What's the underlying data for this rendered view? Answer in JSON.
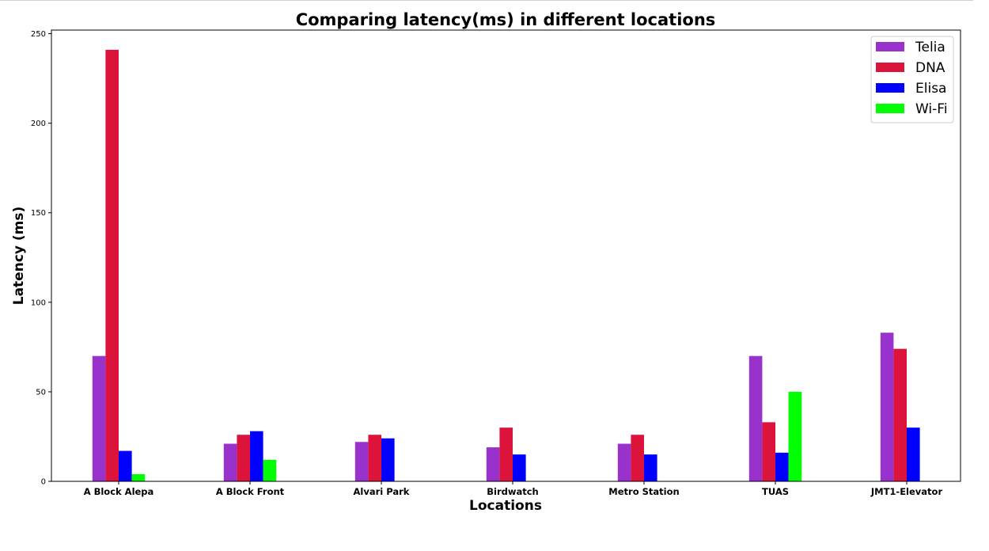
{
  "chart_data": {
    "type": "bar",
    "title": "Comparing latency(ms) in different locations",
    "xlabel": "Locations",
    "ylabel": "Latency (ms)",
    "ylim": [
      0,
      252
    ],
    "yticks": [
      0,
      50,
      100,
      150,
      200,
      250
    ],
    "grid": false,
    "legend_position": "top-right",
    "categories": [
      "A Block Alepa",
      "A Block Front",
      "Alvari Park",
      "Birdwatch",
      "Metro Station",
      "TUAS",
      "JMT1-Elevator"
    ],
    "series": [
      {
        "name": "Telia",
        "color": "#9932CC",
        "values": [
          70,
          21,
          22,
          19,
          21,
          70,
          83
        ]
      },
      {
        "name": "DNA",
        "color": "#DC143C",
        "values": [
          241,
          26,
          26,
          30,
          26,
          33,
          74
        ]
      },
      {
        "name": "Elisa",
        "color": "#0000FF",
        "values": [
          17,
          28,
          24,
          15,
          15,
          16,
          30
        ]
      },
      {
        "name": "Wi-Fi",
        "color": "#00FF00",
        "values": [
          4,
          12,
          0,
          0,
          0,
          50,
          0
        ]
      }
    ]
  }
}
